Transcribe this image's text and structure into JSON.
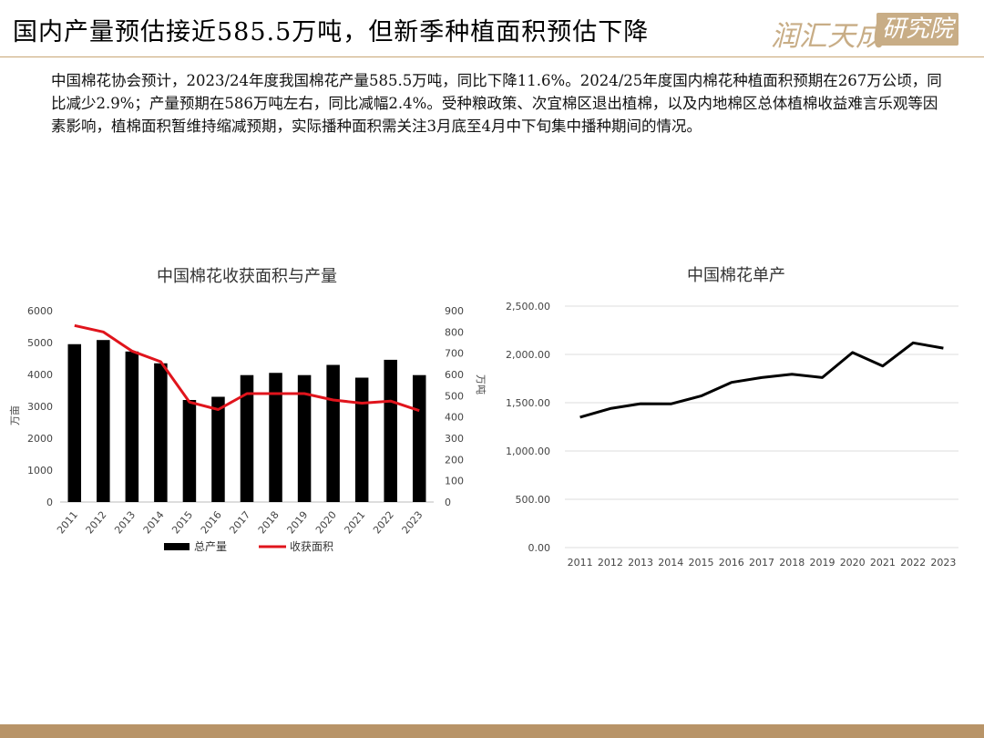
{
  "header": {
    "title": "国内产量预估接近585.5万吨，但新季种植面积预估下降",
    "logo_main": "润汇天成",
    "logo_box": "研究院",
    "accent_color": "#c8a675"
  },
  "summary": "中国棉花协会预计，2023/24年度我国棉花产量585.5万吨，同比下降11.6%。2024/25年度国内棉花种植面积预期在267万公顷，同比减少2.9%；产量预期在586万吨左右，同比减幅2.4%。受种粮政策、次宜棉区退出植棉，以及内地棉区总体植棉收益难言乐观等因素影响，植棉面积暂维持缩减预期，实际播种面积需关注3月底至4月中下旬集中播种期间的情况。",
  "chart_data": [
    {
      "type": "bar",
      "title": "中国棉花收获面积与产量",
      "categories": [
        "2011",
        "2012",
        "2013",
        "2014",
        "2015",
        "2016",
        "2017",
        "2018",
        "2019",
        "2020",
        "2021",
        "2022",
        "2023"
      ],
      "ylabel": "万亩",
      "y2label": "万吨",
      "ylim": [
        0,
        6000
      ],
      "y2lim": [
        0,
        900
      ],
      "yticks": [
        "0",
        "1000",
        "2000",
        "3000",
        "4000",
        "5000",
        "6000"
      ],
      "y2ticks": [
        "0",
        "100",
        "200",
        "300",
        "400",
        "500",
        "600",
        "700",
        "800",
        "900"
      ],
      "series": [
        {
          "name": "总产量",
          "type": "bar",
          "axis": "left",
          "color": "#000000",
          "values": [
            4950,
            5080,
            4720,
            4350,
            3200,
            3300,
            3980,
            4050,
            3980,
            4300,
            3900,
            4460,
            3980
          ]
        },
        {
          "name": "收获面积",
          "type": "line",
          "axis": "right",
          "color": "#e0141c",
          "values": [
            830,
            800,
            710,
            660,
            470,
            435,
            510,
            510,
            510,
            480,
            465,
            475,
            430
          ]
        }
      ],
      "legend": "bottom",
      "grid": false
    },
    {
      "type": "line",
      "title": "中国棉花单产",
      "categories": [
        "2011",
        "2012",
        "2013",
        "2014",
        "2015",
        "2016",
        "2017",
        "2018",
        "2019",
        "2020",
        "2021",
        "2022",
        "2023"
      ],
      "ylim": [
        0,
        2500
      ],
      "yticks": [
        "0.00",
        "500.00",
        "1,000.00",
        "1,500.00",
        "2,000.00",
        "2,500.00"
      ],
      "series": [
        {
          "color": "#000000",
          "values": [
            1350,
            1440,
            1490,
            1488,
            1570,
            1710,
            1760,
            1795,
            1760,
            2020,
            1880,
            2120,
            2065
          ]
        }
      ],
      "grid": true
    }
  ]
}
